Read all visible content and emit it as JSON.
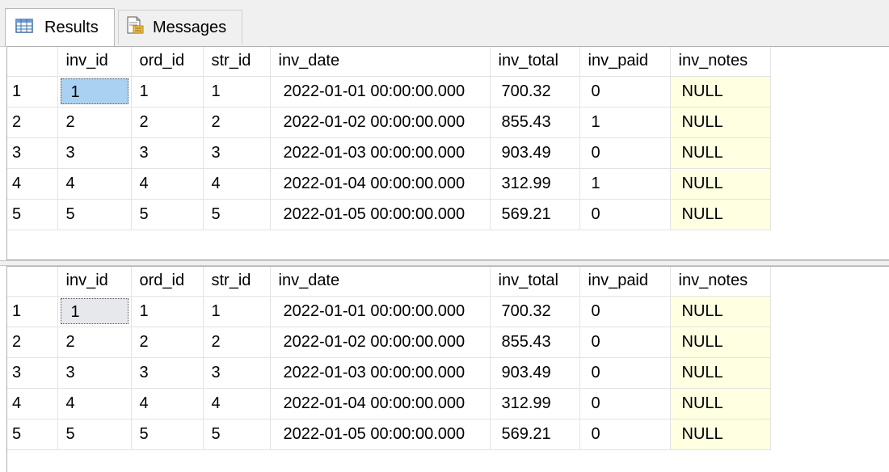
{
  "tabs": {
    "results_label": "Results",
    "messages_label": "Messages"
  },
  "columns": [
    "inv_id",
    "ord_id",
    "str_id",
    "inv_date",
    "inv_total",
    "inv_paid",
    "inv_notes"
  ],
  "grid1": {
    "rows": [
      {
        "n": "1",
        "inv_id": "1",
        "ord_id": "1",
        "str_id": "1",
        "inv_date": "2022-01-01 00:00:00.000",
        "inv_total": "700.32",
        "inv_paid": "0",
        "inv_notes": "NULL"
      },
      {
        "n": "2",
        "inv_id": "2",
        "ord_id": "2",
        "str_id": "2",
        "inv_date": "2022-01-02 00:00:00.000",
        "inv_total": "855.43",
        "inv_paid": "1",
        "inv_notes": "NULL"
      },
      {
        "n": "3",
        "inv_id": "3",
        "ord_id": "3",
        "str_id": "3",
        "inv_date": "2022-01-03 00:00:00.000",
        "inv_total": "903.49",
        "inv_paid": "0",
        "inv_notes": "NULL"
      },
      {
        "n": "4",
        "inv_id": "4",
        "ord_id": "4",
        "str_id": "4",
        "inv_date": "2022-01-04 00:00:00.000",
        "inv_total": "312.99",
        "inv_paid": "1",
        "inv_notes": "NULL"
      },
      {
        "n": "5",
        "inv_id": "5",
        "ord_id": "5",
        "str_id": "5",
        "inv_date": "2022-01-05 00:00:00.000",
        "inv_total": "569.21",
        "inv_paid": "0",
        "inv_notes": "NULL"
      }
    ]
  },
  "grid2": {
    "rows": [
      {
        "n": "1",
        "inv_id": "1",
        "ord_id": "1",
        "str_id": "1",
        "inv_date": "2022-01-01 00:00:00.000",
        "inv_total": "700.32",
        "inv_paid": "0",
        "inv_notes": "NULL"
      },
      {
        "n": "2",
        "inv_id": "2",
        "ord_id": "2",
        "str_id": "2",
        "inv_date": "2022-01-02 00:00:00.000",
        "inv_total": "855.43",
        "inv_paid": "0",
        "inv_notes": "NULL"
      },
      {
        "n": "3",
        "inv_id": "3",
        "ord_id": "3",
        "str_id": "3",
        "inv_date": "2022-01-03 00:00:00.000",
        "inv_total": "903.49",
        "inv_paid": "0",
        "inv_notes": "NULL"
      },
      {
        "n": "4",
        "inv_id": "4",
        "ord_id": "4",
        "str_id": "4",
        "inv_date": "2022-01-04 00:00:00.000",
        "inv_total": "312.99",
        "inv_paid": "0",
        "inv_notes": "NULL"
      },
      {
        "n": "5",
        "inv_id": "5",
        "ord_id": "5",
        "str_id": "5",
        "inv_date": "2022-01-05 00:00:00.000",
        "inv_total": "569.21",
        "inv_paid": "0",
        "inv_notes": "NULL"
      }
    ]
  },
  "icons": {
    "results_tab": "grid-table-icon",
    "messages_tab": "messages-document-icon"
  },
  "colors": {
    "null_cell_bg": "#ffffe1",
    "selected_cell_active": "#a9d1f2",
    "selected_cell_inactive": "#e6e8ec"
  }
}
